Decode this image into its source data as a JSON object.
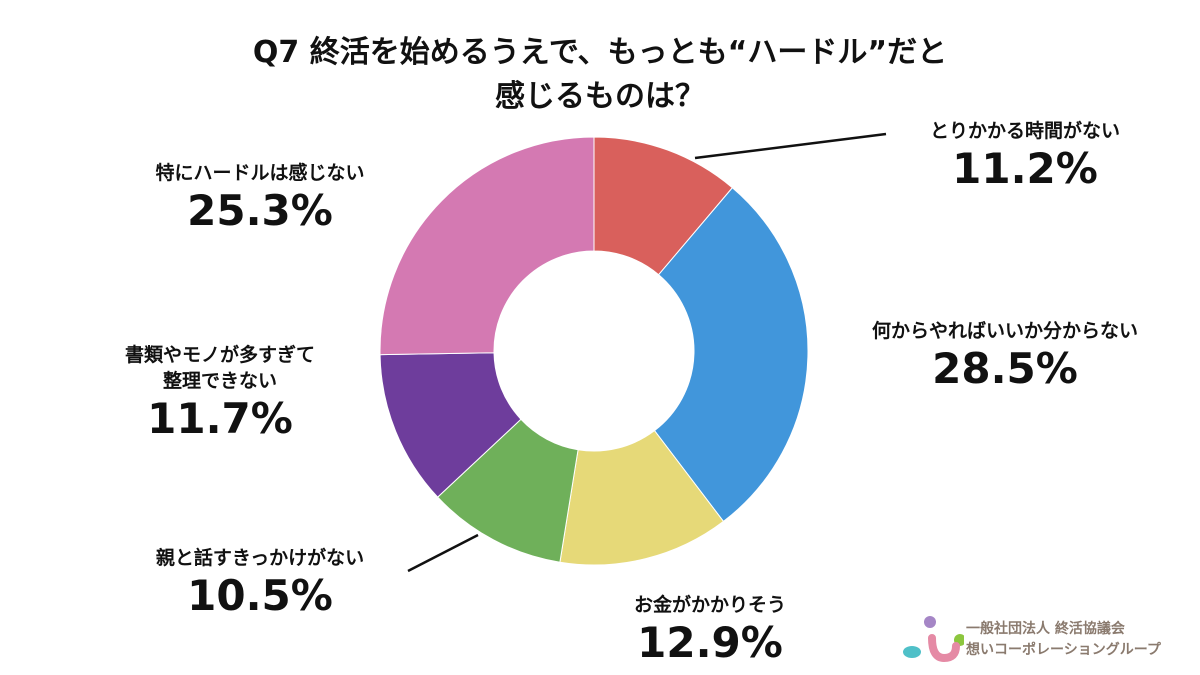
{
  "chart_data": {
    "type": "pie",
    "variant": "donut",
    "title_line1": "Q7 終活を始めるうえで、もっとも“ハードル”だと",
    "title_line2": "感じるものは？",
    "slices": [
      {
        "label": "とりかかる時間がない",
        "value": 11.2,
        "display": "11.2%",
        "color": "#d9605c"
      },
      {
        "label": "何からやればいいか分からない",
        "value": 28.5,
        "display": "28.5%",
        "color": "#4196db"
      },
      {
        "label": "お金がかかりそう",
        "value": 12.9,
        "display": "12.9%",
        "color": "#e6d978"
      },
      {
        "label": "親と話すきっかけがない",
        "value": 10.5,
        "display": "10.5%",
        "color": "#6fb05a"
      },
      {
        "label": "書類やモノが多すぎて\n整理できない",
        "value": 11.7,
        "display": "11.7%",
        "color": "#6e3d9c"
      },
      {
        "label": "特にハードルは感じない",
        "value": 25.3,
        "display": "25.3%",
        "color": "#d479b2"
      }
    ],
    "start": "top",
    "direction": "clockwise"
  },
  "logo": {
    "line1": "一般社団法人 終活協議会",
    "line2": "想いコーポレーショングループ"
  }
}
